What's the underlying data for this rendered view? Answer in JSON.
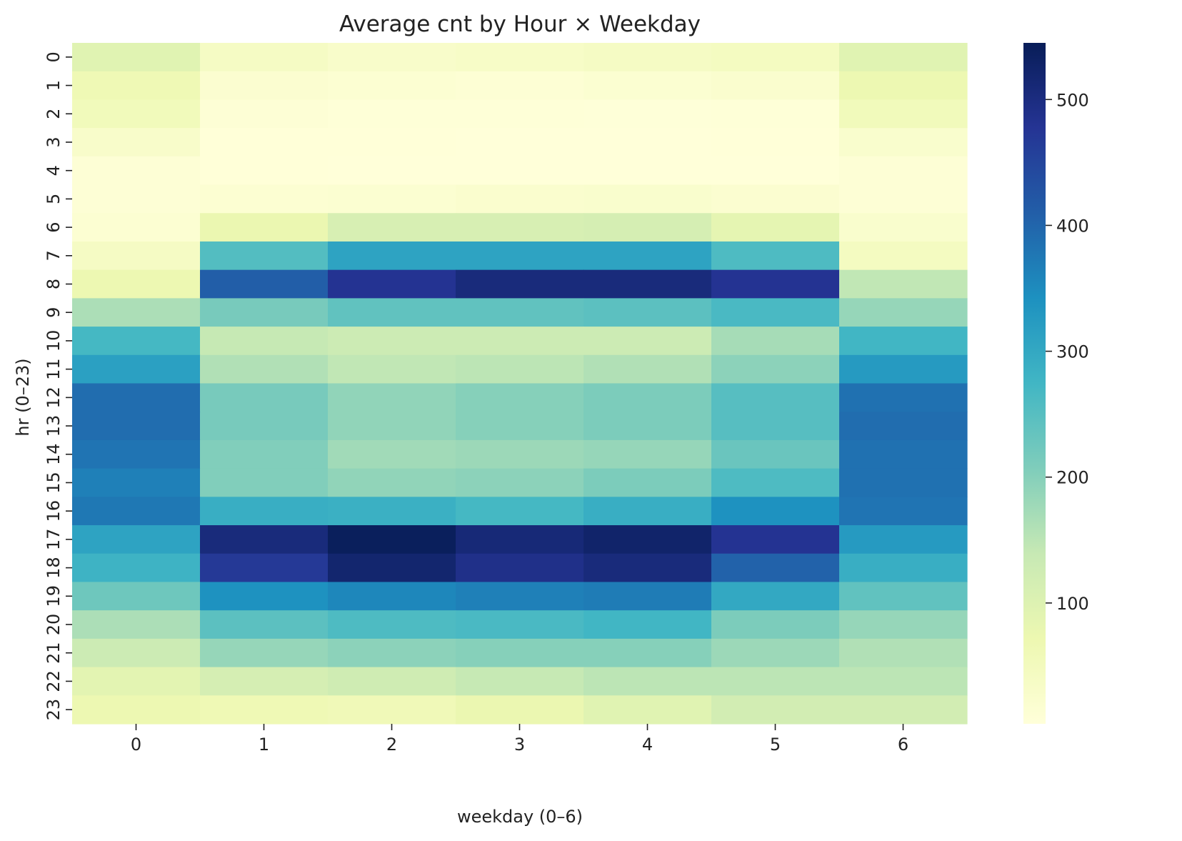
{
  "chart_data": {
    "type": "heatmap",
    "title": "Average cnt by Hour × Weekday",
    "xlabel": "weekday (0–6)",
    "ylabel": "hr (0–23)",
    "x_categories": [
      "0",
      "1",
      "2",
      "3",
      "4",
      "5",
      "6"
    ],
    "y_categories": [
      "0",
      "1",
      "2",
      "3",
      "4",
      "5",
      "6",
      "7",
      "8",
      "9",
      "10",
      "11",
      "12",
      "13",
      "14",
      "15",
      "16",
      "17",
      "18",
      "19",
      "20",
      "21",
      "22",
      "23"
    ],
    "values": [
      [
        95,
        40,
        30,
        35,
        40,
        45,
        95
      ],
      [
        65,
        20,
        15,
        12,
        18,
        22,
        70
      ],
      [
        55,
        10,
        8,
        8,
        6,
        8,
        55
      ],
      [
        30,
        5,
        5,
        4,
        4,
        5,
        25
      ],
      [
        10,
        5,
        4,
        4,
        4,
        4,
        10
      ],
      [
        10,
        15,
        18,
        22,
        25,
        20,
        10
      ],
      [
        15,
        75,
        110,
        110,
        115,
        85,
        25
      ],
      [
        40,
        255,
        310,
        310,
        310,
        260,
        45
      ],
      [
        70,
        410,
        480,
        505,
        505,
        480,
        145
      ],
      [
        165,
        215,
        240,
        240,
        245,
        265,
        185
      ],
      [
        270,
        140,
        130,
        130,
        130,
        170,
        275
      ],
      [
        315,
        160,
        145,
        150,
        160,
        195,
        325
      ],
      [
        390,
        215,
        190,
        200,
        210,
        250,
        385
      ],
      [
        390,
        215,
        190,
        200,
        210,
        250,
        390
      ],
      [
        380,
        205,
        175,
        180,
        185,
        230,
        385
      ],
      [
        365,
        205,
        190,
        195,
        210,
        260,
        385
      ],
      [
        375,
        290,
        285,
        270,
        290,
        340,
        380
      ],
      [
        310,
        505,
        540,
        510,
        525,
        480,
        325
      ],
      [
        280,
        470,
        520,
        490,
        505,
        405,
        290
      ],
      [
        225,
        340,
        355,
        365,
        370,
        300,
        240
      ],
      [
        165,
        245,
        260,
        265,
        275,
        210,
        185
      ],
      [
        130,
        185,
        195,
        200,
        200,
        180,
        160
      ],
      [
        90,
        115,
        125,
        140,
        150,
        150,
        150
      ],
      [
        70,
        65,
        60,
        75,
        95,
        120,
        120
      ]
    ],
    "colorbar": {
      "colormap": "YlGnBu",
      "vmin": 4,
      "vmax": 545,
      "ticks": [
        100,
        200,
        300,
        400,
        500
      ]
    }
  }
}
